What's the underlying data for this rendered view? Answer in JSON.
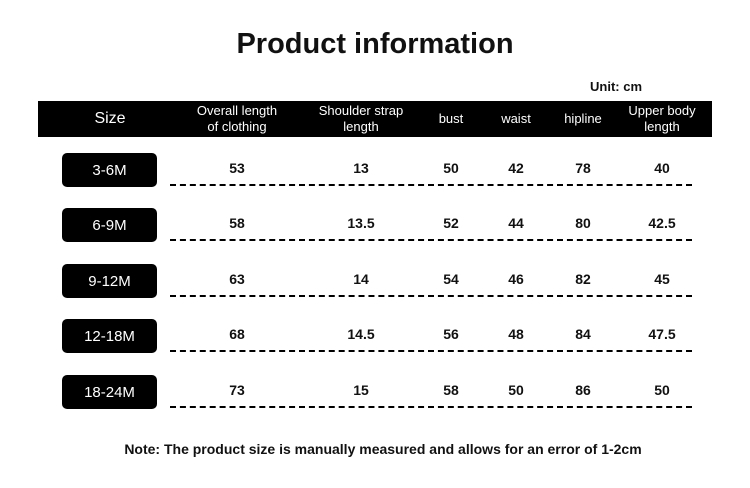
{
  "title": "Product information",
  "unit": "Unit: cm",
  "table": {
    "header": [
      "Size",
      "Overall length\nof clothing",
      "Shoulder strap\nlength",
      "bust",
      "waist",
      "hipline",
      "Upper body\nlength"
    ],
    "rows": [
      [
        "3-6M",
        53,
        13,
        50,
        42,
        78,
        40
      ],
      [
        "6-9M",
        58,
        13.5,
        52,
        44,
        80,
        42.5
      ],
      [
        "9-12M",
        63,
        14,
        54,
        46,
        82,
        45
      ],
      [
        "12-18M",
        68,
        14.5,
        56,
        48,
        84,
        47.5
      ],
      [
        "18-24M",
        73,
        15,
        58,
        50,
        86,
        50
      ]
    ]
  },
  "note": "Note: The product size is manually measured and allows for an error of 1-2cm"
}
